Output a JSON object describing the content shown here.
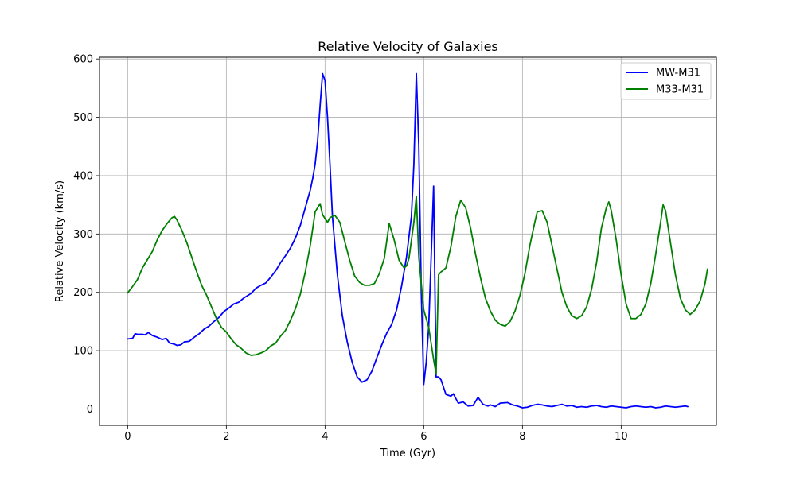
{
  "chart_data": {
    "type": "line",
    "title": "Relative Velocity of Galaxies",
    "xlabel": "Time (Gyr)",
    "ylabel": "Relative Velocity (km/s)",
    "xlim": [
      -0.57,
      11.93
    ],
    "ylim": [
      -28,
      603
    ],
    "xticks": [
      0,
      2,
      4,
      6,
      8,
      10
    ],
    "yticks": [
      0,
      100,
      200,
      300,
      400,
      500,
      600
    ],
    "grid": true,
    "legend_position": "top-right",
    "series": [
      {
        "name": "MW-M31",
        "color": "#0000ff",
        "points": [
          [
            0.0,
            120
          ],
          [
            0.1,
            121
          ],
          [
            0.15,
            129
          ],
          [
            0.2,
            128
          ],
          [
            0.3,
            128
          ],
          [
            0.35,
            127
          ],
          [
            0.42,
            131
          ],
          [
            0.5,
            126
          ],
          [
            0.6,
            123
          ],
          [
            0.7,
            119
          ],
          [
            0.78,
            121
          ],
          [
            0.85,
            113
          ],
          [
            0.95,
            111
          ],
          [
            1.0,
            109
          ],
          [
            1.08,
            110
          ],
          [
            1.15,
            115
          ],
          [
            1.25,
            116
          ],
          [
            1.35,
            123
          ],
          [
            1.45,
            129
          ],
          [
            1.55,
            137
          ],
          [
            1.65,
            142
          ],
          [
            1.75,
            150
          ],
          [
            1.85,
            157
          ],
          [
            1.95,
            167
          ],
          [
            2.05,
            173
          ],
          [
            2.15,
            180
          ],
          [
            2.25,
            183
          ],
          [
            2.35,
            190
          ],
          [
            2.5,
            198
          ],
          [
            2.6,
            207
          ],
          [
            2.7,
            212
          ],
          [
            2.8,
            216
          ],
          [
            2.9,
            226
          ],
          [
            3.0,
            237
          ],
          [
            3.1,
            251
          ],
          [
            3.2,
            263
          ],
          [
            3.3,
            276
          ],
          [
            3.4,
            293
          ],
          [
            3.5,
            315
          ],
          [
            3.6,
            345
          ],
          [
            3.7,
            375
          ],
          [
            3.75,
            395
          ],
          [
            3.8,
            420
          ],
          [
            3.85,
            460
          ],
          [
            3.9,
            520
          ],
          [
            3.95,
            575
          ],
          [
            4.0,
            563
          ],
          [
            4.05,
            500
          ],
          [
            4.1,
            420
          ],
          [
            4.15,
            330
          ],
          [
            4.25,
            230
          ],
          [
            4.35,
            160
          ],
          [
            4.45,
            115
          ],
          [
            4.55,
            80
          ],
          [
            4.65,
            55
          ],
          [
            4.75,
            46
          ],
          [
            4.85,
            50
          ],
          [
            4.95,
            65
          ],
          [
            5.05,
            88
          ],
          [
            5.15,
            110
          ],
          [
            5.25,
            130
          ],
          [
            5.35,
            145
          ],
          [
            5.45,
            170
          ],
          [
            5.55,
            210
          ],
          [
            5.65,
            260
          ],
          [
            5.75,
            330
          ],
          [
            5.8,
            420
          ],
          [
            5.85,
            575
          ],
          [
            5.9,
            450
          ],
          [
            5.95,
            200
          ],
          [
            6.0,
            42
          ],
          [
            6.05,
            80
          ],
          [
            6.1,
            140
          ],
          [
            6.15,
            260
          ],
          [
            6.2,
            382
          ],
          [
            6.25,
            55
          ],
          [
            6.3,
            55
          ],
          [
            6.35,
            50
          ],
          [
            6.45,
            25
          ],
          [
            6.55,
            22
          ],
          [
            6.6,
            26
          ],
          [
            6.7,
            10
          ],
          [
            6.8,
            12
          ],
          [
            6.9,
            5
          ],
          [
            7.0,
            6
          ],
          [
            7.1,
            20
          ],
          [
            7.2,
            8
          ],
          [
            7.3,
            5
          ],
          [
            7.35,
            7
          ],
          [
            7.45,
            4
          ],
          [
            7.55,
            10
          ],
          [
            7.7,
            11
          ],
          [
            7.8,
            7
          ],
          [
            7.9,
            5
          ],
          [
            8.0,
            2
          ],
          [
            8.1,
            3
          ],
          [
            8.2,
            6
          ],
          [
            8.3,
            8
          ],
          [
            8.4,
            7
          ],
          [
            8.5,
            5
          ],
          [
            8.6,
            4
          ],
          [
            8.7,
            6
          ],
          [
            8.8,
            8
          ],
          [
            8.9,
            5
          ],
          [
            9.0,
            6
          ],
          [
            9.1,
            3
          ],
          [
            9.2,
            4
          ],
          [
            9.3,
            3
          ],
          [
            9.4,
            5
          ],
          [
            9.5,
            6
          ],
          [
            9.6,
            4
          ],
          [
            9.7,
            3
          ],
          [
            9.8,
            5
          ],
          [
            9.9,
            4
          ],
          [
            10.0,
            3
          ],
          [
            10.1,
            2
          ],
          [
            10.2,
            4
          ],
          [
            10.3,
            5
          ],
          [
            10.4,
            4
          ],
          [
            10.5,
            3
          ],
          [
            10.6,
            4
          ],
          [
            10.7,
            2
          ],
          [
            10.8,
            3
          ],
          [
            10.9,
            5
          ],
          [
            11.0,
            4
          ],
          [
            11.1,
            3
          ],
          [
            11.2,
            4
          ],
          [
            11.3,
            5
          ],
          [
            11.35,
            4
          ]
        ]
      },
      {
        "name": "M33-M31",
        "color": "#008000",
        "points": [
          [
            0.0,
            199
          ],
          [
            0.1,
            210
          ],
          [
            0.2,
            222
          ],
          [
            0.3,
            242
          ],
          [
            0.4,
            256
          ],
          [
            0.5,
            270
          ],
          [
            0.6,
            290
          ],
          [
            0.7,
            306
          ],
          [
            0.8,
            318
          ],
          [
            0.9,
            328
          ],
          [
            0.95,
            330
          ],
          [
            1.0,
            324
          ],
          [
            1.1,
            306
          ],
          [
            1.2,
            285
          ],
          [
            1.3,
            260
          ],
          [
            1.4,
            235
          ],
          [
            1.5,
            212
          ],
          [
            1.6,
            195
          ],
          [
            1.7,
            175
          ],
          [
            1.8,
            155
          ],
          [
            1.9,
            140
          ],
          [
            2.0,
            132
          ],
          [
            2.1,
            120
          ],
          [
            2.2,
            110
          ],
          [
            2.3,
            104
          ],
          [
            2.4,
            96
          ],
          [
            2.5,
            92
          ],
          [
            2.6,
            93
          ],
          [
            2.7,
            96
          ],
          [
            2.8,
            100
          ],
          [
            2.9,
            108
          ],
          [
            3.0,
            113
          ],
          [
            3.1,
            125
          ],
          [
            3.2,
            135
          ],
          [
            3.3,
            152
          ],
          [
            3.4,
            172
          ],
          [
            3.5,
            197
          ],
          [
            3.6,
            235
          ],
          [
            3.7,
            280
          ],
          [
            3.8,
            338
          ],
          [
            3.9,
            352
          ],
          [
            3.95,
            333
          ],
          [
            4.05,
            320
          ],
          [
            4.1,
            328
          ],
          [
            4.2,
            332
          ],
          [
            4.3,
            320
          ],
          [
            4.4,
            287
          ],
          [
            4.5,
            255
          ],
          [
            4.6,
            228
          ],
          [
            4.7,
            217
          ],
          [
            4.8,
            212
          ],
          [
            4.9,
            212
          ],
          [
            5.0,
            215
          ],
          [
            5.1,
            232
          ],
          [
            5.2,
            258
          ],
          [
            5.3,
            318
          ],
          [
            5.4,
            290
          ],
          [
            5.5,
            255
          ],
          [
            5.6,
            242
          ],
          [
            5.65,
            245
          ],
          [
            5.7,
            258
          ],
          [
            5.8,
            320
          ],
          [
            5.85,
            365
          ],
          [
            5.9,
            260
          ],
          [
            6.0,
            170
          ],
          [
            6.1,
            140
          ],
          [
            6.2,
            85
          ],
          [
            6.25,
            60
          ],
          [
            6.3,
            230
          ],
          [
            6.35,
            235
          ],
          [
            6.45,
            242
          ],
          [
            6.55,
            278
          ],
          [
            6.65,
            330
          ],
          [
            6.75,
            358
          ],
          [
            6.85,
            345
          ],
          [
            6.95,
            310
          ],
          [
            7.05,
            265
          ],
          [
            7.15,
            225
          ],
          [
            7.25,
            190
          ],
          [
            7.35,
            168
          ],
          [
            7.45,
            152
          ],
          [
            7.55,
            145
          ],
          [
            7.65,
            142
          ],
          [
            7.75,
            150
          ],
          [
            7.85,
            168
          ],
          [
            7.95,
            195
          ],
          [
            8.05,
            232
          ],
          [
            8.15,
            280
          ],
          [
            8.25,
            320
          ],
          [
            8.3,
            338
          ],
          [
            8.4,
            340
          ],
          [
            8.5,
            320
          ],
          [
            8.6,
            280
          ],
          [
            8.7,
            240
          ],
          [
            8.8,
            200
          ],
          [
            8.9,
            175
          ],
          [
            9.0,
            160
          ],
          [
            9.1,
            155
          ],
          [
            9.2,
            160
          ],
          [
            9.3,
            175
          ],
          [
            9.4,
            205
          ],
          [
            9.5,
            250
          ],
          [
            9.6,
            310
          ],
          [
            9.7,
            345
          ],
          [
            9.75,
            355
          ],
          [
            9.8,
            340
          ],
          [
            9.9,
            290
          ],
          [
            10.0,
            230
          ],
          [
            10.1,
            180
          ],
          [
            10.2,
            155
          ],
          [
            10.3,
            155
          ],
          [
            10.4,
            162
          ],
          [
            10.5,
            180
          ],
          [
            10.6,
            215
          ],
          [
            10.7,
            265
          ],
          [
            10.8,
            320
          ],
          [
            10.85,
            350
          ],
          [
            10.9,
            340
          ],
          [
            11.0,
            285
          ],
          [
            11.1,
            230
          ],
          [
            11.2,
            190
          ],
          [
            11.3,
            170
          ],
          [
            11.4,
            162
          ],
          [
            11.5,
            170
          ],
          [
            11.6,
            185
          ],
          [
            11.7,
            215
          ],
          [
            11.75,
            240
          ]
        ]
      }
    ]
  }
}
